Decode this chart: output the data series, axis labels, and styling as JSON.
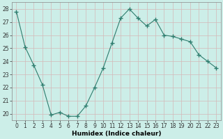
{
  "x": [
    0,
    1,
    2,
    3,
    4,
    5,
    6,
    7,
    8,
    9,
    10,
    11,
    12,
    13,
    14,
    15,
    16,
    17,
    18,
    19,
    20,
    21,
    22,
    23
  ],
  "y": [
    27.8,
    25.1,
    23.7,
    22.2,
    19.9,
    20.1,
    19.8,
    19.8,
    20.6,
    22.0,
    23.5,
    25.4,
    27.3,
    28.0,
    27.3,
    26.7,
    27.2,
    26.0,
    25.9,
    25.7,
    25.5,
    24.5,
    24.0,
    23.5
  ],
  "line_color": "#2e7d6e",
  "marker": "+",
  "marker_size": 4,
  "bg_color": "#cceee8",
  "grid_color": "#b8d8d4",
  "xlabel": "Humidex (Indice chaleur)",
  "ylim": [
    19.5,
    28.5
  ],
  "xlim": [
    -0.5,
    23.5
  ],
  "yticks": [
    20,
    21,
    22,
    23,
    24,
    25,
    26,
    27,
    28
  ],
  "xticks": [
    0,
    1,
    2,
    3,
    4,
    5,
    6,
    7,
    8,
    9,
    10,
    11,
    12,
    13,
    14,
    15,
    16,
    17,
    18,
    19,
    20,
    21,
    22,
    23
  ],
  "xlabel_fontsize": 6.5,
  "tick_fontsize": 5.5,
  "line_width": 0.8,
  "spine_color": "#888888"
}
